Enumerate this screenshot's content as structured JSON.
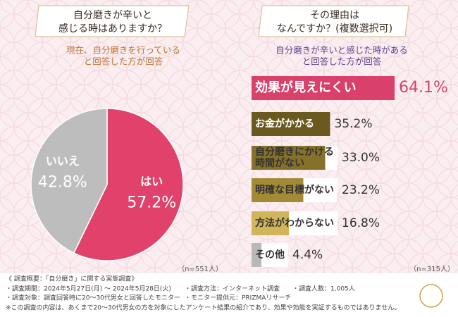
{
  "chart_data": [
    {
      "type": "pie",
      "title": [
        "自分磨きが辛いと",
        "感じる時はありますか？"
      ],
      "subtitle": [
        "現在、自分磨きを行っている",
        "と回答した方が回答"
      ],
      "categories": [
        "はい",
        "いいえ"
      ],
      "values": [
        57.2,
        42.8
      ],
      "value_labels": [
        "57.2%",
        "42.8%"
      ],
      "colors": [
        "#e0426b",
        "#bdbdbd"
      ],
      "n_label": "（n=551人）"
    },
    {
      "type": "bar",
      "orientation": "horizontal",
      "title": [
        "その理由は",
        "なんですか？(複数選択可)"
      ],
      "subtitle": [
        "自分磨きが辛いと感じた時がある",
        "と回答した方が回答"
      ],
      "categories": [
        "効果が見えにくい",
        "お金がかかる",
        "自分磨きにかける時間がない",
        "明確な目標がない",
        "方法がわからない",
        "その他"
      ],
      "values": [
        64.1,
        35.2,
        33.0,
        23.2,
        16.8,
        4.4
      ],
      "value_labels": [
        "64.1%",
        "35.2%",
        "33.0%",
        "23.2%",
        "16.8%",
        "4.4%"
      ],
      "colors": [
        "#d9416a",
        "#6b5a1f",
        "#85712a",
        "#a38a36",
        "#d2b55a",
        "#b8b8b8"
      ],
      "n_label": "（n=315人）"
    }
  ],
  "footer": {
    "heading": "《 調査概要：「自分磨き」に関する実態調査》",
    "items": [
      "・調査期間：2024年5月27日(月) ～ 2024年5月28日(火)",
      "・調査方法：インターネット調査",
      "・調査人数：1,005人",
      "・調査対象：調査回答時に20～30代男女と回答したモニター",
      "・モニター提供元：PRIZMAリサーチ"
    ],
    "disclaimer": "※この調査の内容は、あくまで20～30代男女の方を対象にしたアンケート結果の紹介であり、効果や効能を実証するものではありません。"
  }
}
